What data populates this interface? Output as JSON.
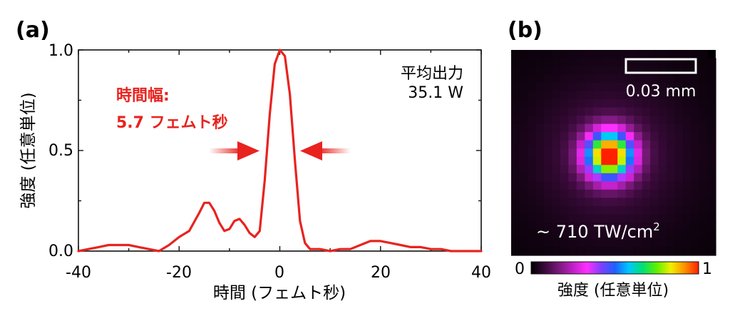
{
  "panel_a": {
    "label": "(a)",
    "annotation_fwhm_line1": "時間幅:",
    "annotation_fwhm_line2": "5.7 フェムト秒",
    "annotation_power_line1": "平均出力",
    "annotation_power_line2": "35.1 W",
    "accent_color": "#e8231f"
  },
  "panel_b": {
    "label": "(b)",
    "scale_bar_label": "0.03 mm",
    "intensity_label_main": "~ 710 TW/cm",
    "intensity_label_sup": "2",
    "colorbar_min": "0",
    "colorbar_max": "1",
    "colorbar_label": "強度 (任意単位)",
    "colormap": [
      "#000000",
      "#3a0a3a",
      "#7a1a7a",
      "#c020c8",
      "#ff30ff",
      "#8040ff",
      "#2060ff",
      "#00c8ff",
      "#00e070",
      "#60f000",
      "#f0f000",
      "#ff9000",
      "#ff2000"
    ]
  },
  "chart_data": [
    {
      "type": "line",
      "xlabel": "時間 (フェムト秒)",
      "ylabel": "強度 (任意単位)",
      "xlim": [
        -40,
        40
      ],
      "ylim": [
        0,
        1
      ],
      "xticks": [
        "-40",
        "-20",
        "0",
        "20",
        "40"
      ],
      "yticks": [
        "0.0",
        "0.5",
        "1.0"
      ],
      "series": [
        {
          "color": "#e8231f",
          "x": [
            -40,
            -38,
            -36,
            -34,
            -32,
            -30,
            -28,
            -26,
            -24,
            -22,
            -20,
            -18,
            -16,
            -15,
            -14,
            -13,
            -12,
            -11,
            -10,
            -9,
            -8,
            -7,
            -6,
            -5,
            -4,
            -3,
            -2,
            -1,
            0,
            1,
            2,
            3,
            4,
            5,
            6,
            8,
            10,
            12,
            14,
            16,
            18,
            20,
            22,
            24,
            26,
            28,
            30,
            32,
            34,
            36,
            38,
            40
          ],
          "y": [
            0.0,
            0.01,
            0.02,
            0.03,
            0.03,
            0.03,
            0.02,
            0.01,
            0.0,
            0.03,
            0.07,
            0.1,
            0.19,
            0.24,
            0.24,
            0.2,
            0.14,
            0.1,
            0.11,
            0.15,
            0.16,
            0.13,
            0.09,
            0.07,
            0.1,
            0.35,
            0.68,
            0.93,
            1.0,
            0.97,
            0.78,
            0.45,
            0.15,
            0.04,
            0.01,
            0.01,
            0.0,
            0.01,
            0.01,
            0.03,
            0.05,
            0.05,
            0.04,
            0.03,
            0.02,
            0.02,
            0.01,
            0.01,
            0.0,
            0.0,
            0.0,
            0.0
          ]
        }
      ],
      "grid": false
    },
    {
      "type": "heatmap",
      "grid_size": 25,
      "peak_intensity": 1.0,
      "background_intensity": 0.03,
      "colorbar_range": [
        0,
        1
      ]
    }
  ]
}
